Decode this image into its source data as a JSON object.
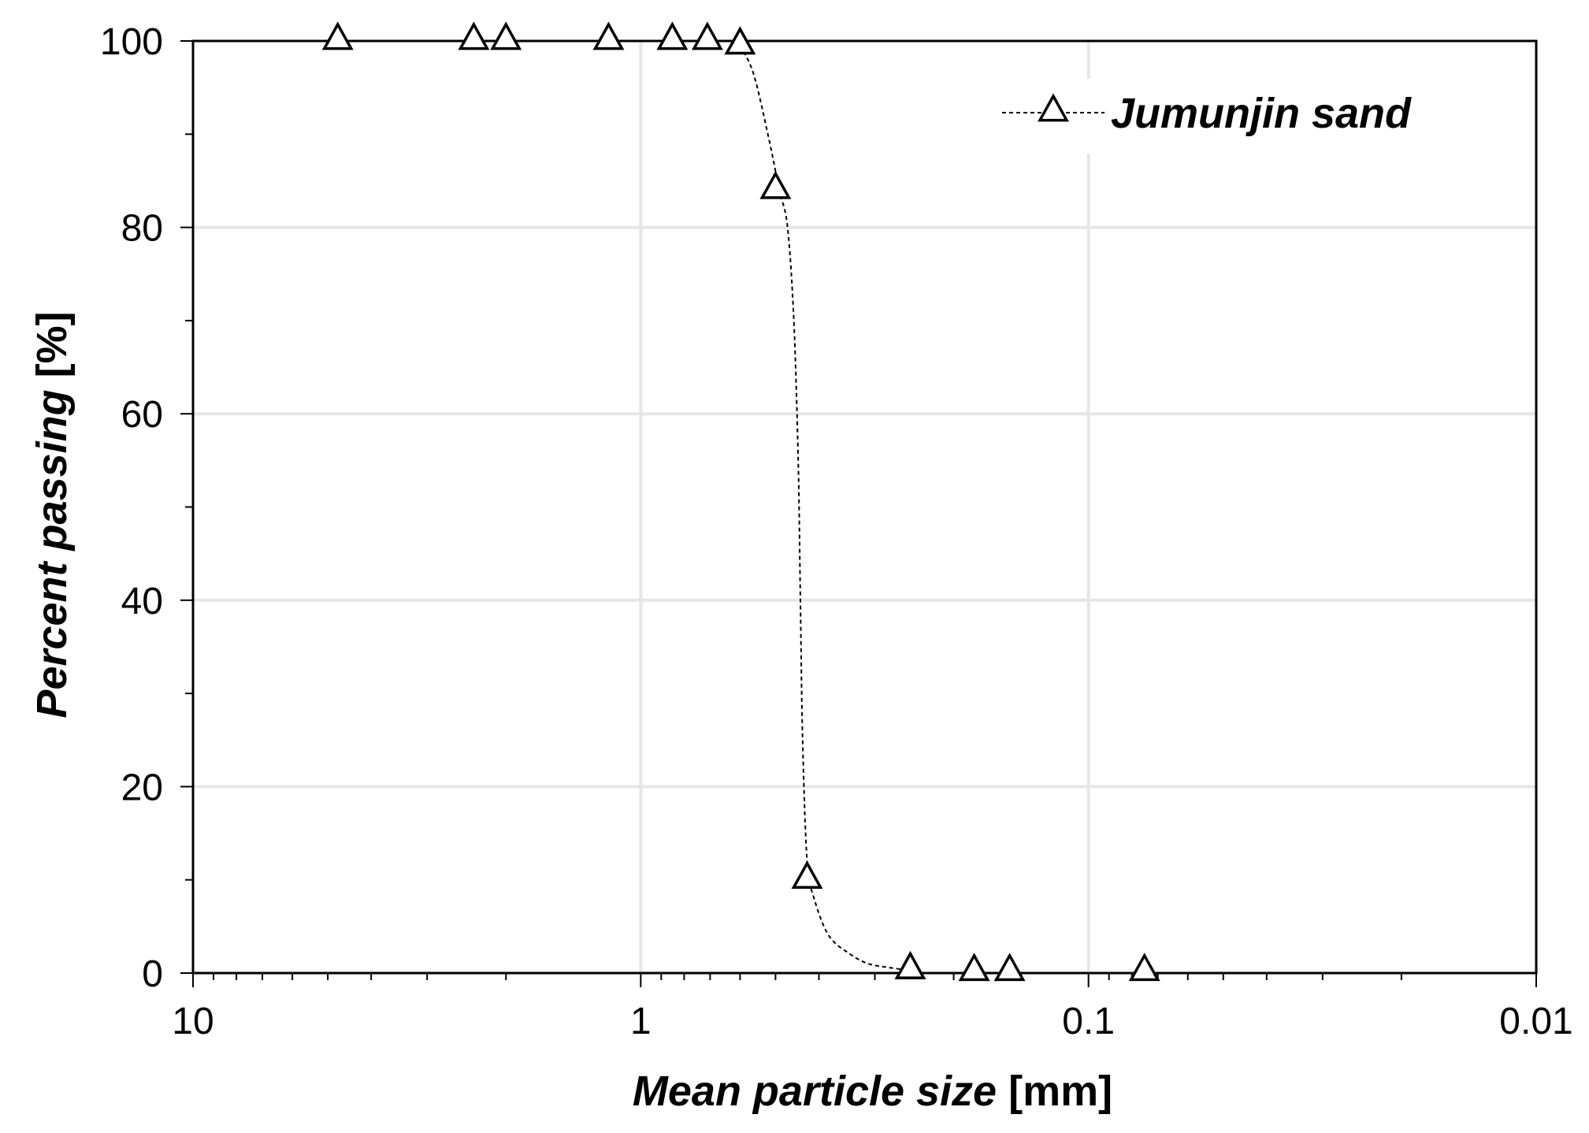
{
  "chart_data": {
    "type": "scatter",
    "title": "",
    "xlabel": "Mean particle size",
    "xlabel_unit": " [mm]",
    "ylabel": "Percent passing",
    "ylabel_unit": " [%]",
    "x_scale": "log",
    "x_reversed": true,
    "xlim": [
      10,
      0.01
    ],
    "ylim": [
      0,
      100
    ],
    "x_ticks": [
      10,
      1,
      0.1,
      0.01
    ],
    "x_tick_labels": [
      "10",
      "1",
      "0.1",
      "0.01"
    ],
    "y_ticks": [
      0,
      20,
      40,
      60,
      80,
      100
    ],
    "y_tick_labels": [
      "0",
      "20",
      "40",
      "60",
      "80",
      "100"
    ],
    "grid": true,
    "legend_position": "top-right",
    "series": [
      {
        "name": "Jumunjin sand",
        "marker": "open-triangle",
        "line": "dashed",
        "color": "#000000",
        "x": [
          4.75,
          2.36,
          2.0,
          1.18,
          0.85,
          0.71,
          0.6,
          0.5,
          0.425,
          0.25,
          0.18,
          0.15,
          0.075
        ],
        "y": [
          100,
          100,
          100,
          100,
          100,
          100,
          99.5,
          84,
          10,
          0.3,
          0.1,
          0.1,
          0.1
        ]
      }
    ],
    "fit_curve": {
      "x": [
        0.6,
        0.56,
        0.52,
        0.49,
        0.47,
        0.455,
        0.445,
        0.44,
        0.435,
        0.425,
        0.41,
        0.38,
        0.34,
        0.31,
        0.28,
        0.25
      ],
      "y": [
        99.5,
        96.5,
        90,
        84,
        80,
        70,
        55,
        40,
        25,
        12,
        8,
        4,
        2,
        1,
        0.6,
        0.3
      ]
    }
  }
}
